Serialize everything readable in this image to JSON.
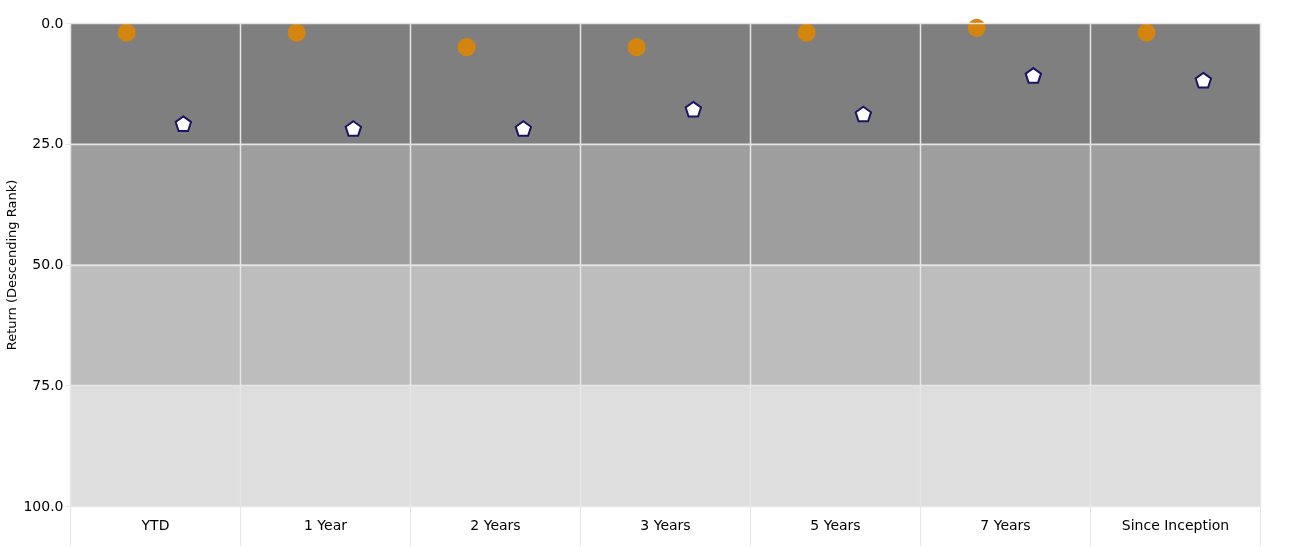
{
  "chart_data": {
    "type": "scatter",
    "ylabel": "Return (Descending Rank)",
    "categories": [
      "YTD",
      "1 Year",
      "2 Years",
      "3 Years",
      "5 Years",
      "7 Years",
      "Since Inception"
    ],
    "series": [
      {
        "color": "#d4850f",
        "marker": "circle",
        "values": [
          2,
          2,
          5,
          5,
          2,
          1,
          2
        ]
      },
      {
        "color": "#1a1464",
        "values": [
          21,
          22,
          22,
          18,
          19,
          11,
          12
        ]
      }
    ],
    "ylim": [
      100,
      0
    ],
    "yticks": [
      {
        "value": 0,
        "label": "0.0"
      },
      {
        "value": 25,
        "label": "25.0"
      },
      {
        "value": 50,
        "label": "50.0"
      },
      {
        "value": 75,
        "label": "75.0"
      },
      {
        "value": 100,
        "label": "100.0"
      }
    ],
    "bands": [
      {
        "axis": "y",
        "from": 0,
        "to": 25,
        "color": "#7f7f7f"
      },
      {
        "axis": "y",
        "from": 25,
        "to": 50,
        "color": "#9e9e9e"
      },
      {
        "axis": "y",
        "from": 50,
        "to": 75,
        "color": "#bdbdbd"
      },
      {
        "axis": "y",
        "from": 75,
        "to": 100,
        "color": "#dedede"
      }
    ],
    "grid": true,
    "legend": false
  }
}
